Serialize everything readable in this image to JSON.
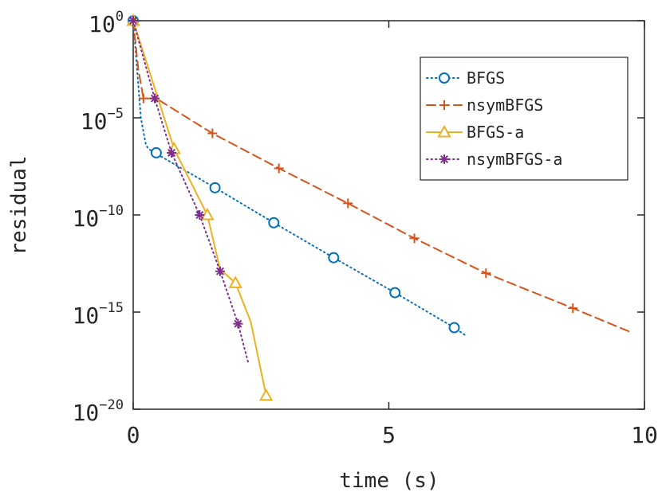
{
  "chart_data": {
    "type": "line",
    "xlabel": "time (s)",
    "ylabel": "residual",
    "xlim": [
      0,
      10
    ],
    "ylim": [
      1e-20,
      1
    ],
    "yscale": "log",
    "grid": false,
    "legend": "top-right",
    "x_ticks": [
      {
        "value": 0,
        "label": "0"
      },
      {
        "value": 5,
        "label": "5"
      },
      {
        "value": 10,
        "label": "10"
      }
    ],
    "y_ticks": [
      {
        "exp": 0,
        "base": "10",
        "sup": "0"
      },
      {
        "exp": -5,
        "base": "10",
        "sup": "−5"
      },
      {
        "exp": -10,
        "base": "10",
        "sup": "−10"
      },
      {
        "exp": -15,
        "base": "10",
        "sup": "−15"
      },
      {
        "exp": -20,
        "base": "10",
        "sup": "−20"
      }
    ],
    "series": [
      {
        "name": "BFGS",
        "color": "#0072BD",
        "line": "dotted",
        "marker": "circle",
        "line_points": [
          [
            0,
            0
          ],
          [
            0.1,
            -3.3
          ],
          [
            0.15,
            -5
          ],
          [
            0.25,
            -6.4
          ],
          [
            0.3,
            -6.6
          ],
          [
            0.42,
            -6.8
          ],
          [
            1.6,
            -8.6
          ],
          [
            2.75,
            -10.4
          ],
          [
            3.92,
            -12.2
          ],
          [
            5.12,
            -14.0
          ],
          [
            6.28,
            -15.8
          ],
          [
            6.5,
            -16.2
          ]
        ],
        "marker_points": [
          [
            0,
            0
          ],
          [
            0.45,
            -6.8
          ],
          [
            1.6,
            -8.6
          ],
          [
            2.75,
            -10.4
          ],
          [
            3.92,
            -12.2
          ],
          [
            5.12,
            -14.0
          ],
          [
            6.28,
            -15.8
          ]
        ]
      },
      {
        "name": "nsymBFGS",
        "color": "#D95319",
        "line": "dashed",
        "marker": "plus",
        "line_points": [
          [
            0,
            0
          ],
          [
            0.1,
            -2.5
          ],
          [
            0.2,
            -4.0
          ],
          [
            0.45,
            -4.0
          ],
          [
            1.55,
            -5.8
          ],
          [
            2.85,
            -7.6
          ],
          [
            4.2,
            -9.4
          ],
          [
            5.5,
            -11.2
          ],
          [
            6.9,
            -13.0
          ],
          [
            8.6,
            -14.8
          ],
          [
            9.7,
            -16.0
          ]
        ],
        "marker_points": [
          [
            0,
            0
          ],
          [
            0.2,
            -4.0
          ],
          [
            0.42,
            -4.0
          ],
          [
            1.55,
            -5.8
          ],
          [
            2.85,
            -7.6
          ],
          [
            4.2,
            -9.4
          ],
          [
            5.5,
            -11.2
          ],
          [
            6.9,
            -13.0
          ],
          [
            8.6,
            -14.8
          ]
        ]
      },
      {
        "name": "BFGS-a",
        "color": "#EDB120",
        "line": "solid",
        "marker": "triangle",
        "line_points": [
          [
            0,
            0
          ],
          [
            0.8,
            -6.6
          ],
          [
            1.45,
            -10.0
          ],
          [
            1.7,
            -12.8
          ],
          [
            2.0,
            -13.5
          ],
          [
            2.3,
            -15.5
          ],
          [
            2.6,
            -19.3
          ]
        ],
        "marker_points": [
          [
            0,
            0
          ],
          [
            0.8,
            -6.6
          ],
          [
            1.45,
            -10.0
          ],
          [
            2.0,
            -13.5
          ],
          [
            2.6,
            -19.3
          ]
        ]
      },
      {
        "name": "nsymBFGS-a",
        "color": "#7E2F8E",
        "line": "dotted",
        "marker": "asterisk",
        "line_points": [
          [
            0,
            0
          ],
          [
            0.42,
            -4.0
          ],
          [
            0.75,
            -6.8
          ],
          [
            1.3,
            -10.0
          ],
          [
            1.7,
            -12.9
          ],
          [
            2.05,
            -15.6
          ],
          [
            2.25,
            -17.6
          ]
        ],
        "marker_points": [
          [
            0,
            0
          ],
          [
            0.42,
            -4.0
          ],
          [
            0.75,
            -6.8
          ],
          [
            1.3,
            -10.0
          ],
          [
            1.7,
            -12.9
          ],
          [
            2.05,
            -15.6
          ]
        ]
      }
    ]
  }
}
